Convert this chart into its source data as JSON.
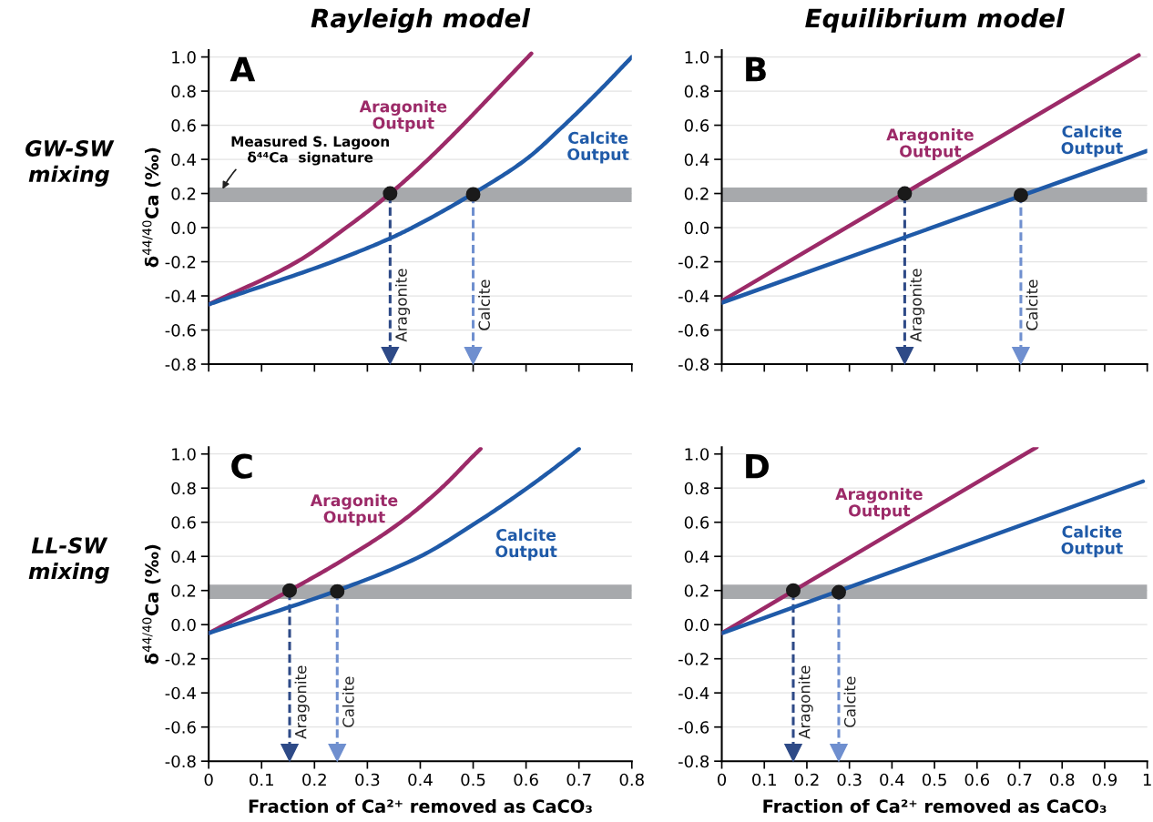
{
  "chart_data": [
    {
      "type": "line",
      "title": "Rayleigh model",
      "ylabel": "δ$^{44/40}$Ca (‰)",
      "annotations": [
        "A",
        "GW-SW mixing"
      ],
      "xlim": [
        0,
        0.8
      ],
      "xticks": [
        0,
        0.1,
        0.2,
        0.3,
        0.4,
        0.5,
        0.6,
        0.7,
        0.8
      ],
      "ylim": [
        -0.8,
        1.04
      ],
      "yticks": [
        {
          "value": -0.8,
          "label": "-0.8"
        },
        {
          "value": -0.6,
          "label": "-0.6"
        },
        {
          "value": -0.4,
          "label": "-0.4"
        },
        {
          "value": -0.2,
          "label": "-0.2"
        },
        {
          "value": 0,
          "label": "0.0"
        },
        {
          "value": 0.2,
          "label": "0.2"
        },
        {
          "value": 0.4,
          "label": "0.4"
        },
        {
          "value": 0.6,
          "label": "0.6"
        },
        {
          "value": 0.8,
          "label": "0.8"
        },
        {
          "value": 1.0,
          "label": "1.0"
        }
      ],
      "tick_labels": "y",
      "grid": "y",
      "marker": "none",
      "line_style": "solid",
      "series": [
        {
          "name": "Aragonite Output",
          "color": "#9c2a68",
          "x": [
            0,
            0.167,
            0.26,
            0.343,
            0.415,
            0.48,
            0.542,
            0.61
          ],
          "values": [
            -0.45,
            -0.2,
            0.0,
            0.2,
            0.4,
            0.6,
            0.8,
            1.02
          ]
        },
        {
          "name": "Calcite Output",
          "color": "#1f5aa8",
          "x": [
            0,
            0.047,
            0.234,
            0.345,
            0.385,
            0.5,
            0.6,
            0.672,
            0.738,
            0.8
          ],
          "values": [
            -0.45,
            -0.4,
            -0.2,
            -0.06,
            0.0,
            0.2,
            0.4,
            0.6,
            0.8,
            1.0
          ]
        },
        {
          "type": "scatter",
          "color": "#1a1a1a",
          "marker": "circle",
          "x": [
            0.343,
            0.5
          ],
          "values": [
            0.2,
            0.195
          ]
        }
      ],
      "bands": [
        {
          "axis": "y",
          "from": 0.15,
          "to": 0.235,
          "label": "Measured S. Lagoon\nδ⁴⁴Ca  signature",
          "color": "#a7a9ac"
        }
      ],
      "ref_lines": [
        {
          "axis": "x",
          "value": 0.343,
          "label": "Aragonite",
          "color": "#2e4a87",
          "line_style": "dashed"
        },
        {
          "axis": "x",
          "value": 0.5,
          "label": "Calcite",
          "color": "#6f8fcf",
          "line_style": "dashed"
        }
      ]
    },
    {
      "type": "line",
      "title": "Equilibrium model",
      "annotations": [
        "B"
      ],
      "xlim": [
        0,
        1
      ],
      "xticks": [
        0,
        0.1,
        0.2,
        0.3,
        0.4,
        0.5,
        0.6,
        0.7,
        0.8,
        0.9,
        1
      ],
      "ylim": [
        -0.8,
        1.04
      ],
      "yticks": [
        {
          "value": -0.8,
          "label": "-0.8"
        },
        {
          "value": -0.6,
          "label": "-0.6"
        },
        {
          "value": -0.4,
          "label": "-0.4"
        },
        {
          "value": -0.2,
          "label": "-0.2"
        },
        {
          "value": 0,
          "label": "0.0"
        },
        {
          "value": 0.2,
          "label": "0.2"
        },
        {
          "value": 0.4,
          "label": "0.4"
        },
        {
          "value": 0.6,
          "label": "0.6"
        },
        {
          "value": 0.8,
          "label": "0.8"
        },
        {
          "value": 1.0,
          "label": "1.0"
        }
      ],
      "tick_labels": "y",
      "grid": "y",
      "marker": "none",
      "line_style": "solid",
      "series": [
        {
          "name": "Aragonite Output",
          "color": "#9c2a68",
          "x": [
            0,
            0.98
          ],
          "values": [
            -0.43,
            1.01
          ]
        },
        {
          "name": "Calcite Output",
          "color": "#1f5aa8",
          "x": [
            0,
            1.0
          ],
          "values": [
            -0.44,
            0.45
          ]
        },
        {
          "type": "scatter",
          "color": "#1a1a1a",
          "marker": "circle",
          "x": [
            0.43,
            0.703
          ],
          "values": [
            0.2,
            0.19
          ]
        }
      ],
      "bands": [
        {
          "axis": "y",
          "from": 0.15,
          "to": 0.235,
          "color": "#a7a9ac"
        }
      ],
      "ref_lines": [
        {
          "axis": "x",
          "value": 0.43,
          "label": "Aragonite",
          "color": "#2e4a87",
          "line_style": "dashed"
        },
        {
          "axis": "x",
          "value": 0.703,
          "label": "Calcite",
          "color": "#6f8fcf",
          "line_style": "dashed"
        }
      ]
    },
    {
      "type": "line",
      "xlabel": "Fraction of Ca²⁺ removed as CaCO₃",
      "ylabel": "δ$^{44/40}$Ca (‰)",
      "annotations": [
        "C",
        "LL-SW mixing"
      ],
      "xlim": [
        0,
        0.8
      ],
      "xticks": [
        0,
        0.1,
        0.2,
        0.3,
        0.4,
        0.5,
        0.6,
        0.7,
        0.8
      ],
      "ylim": [
        -0.8,
        1.04
      ],
      "yticks": [
        {
          "value": -0.8,
          "label": "-0.8"
        },
        {
          "value": -0.6,
          "label": "-0.6"
        },
        {
          "value": -0.4,
          "label": "-0.4"
        },
        {
          "value": -0.2,
          "label": "-0.2"
        },
        {
          "value": 0,
          "label": "0.0"
        },
        {
          "value": 0.2,
          "label": "0.2"
        },
        {
          "value": 0.4,
          "label": "0.4"
        },
        {
          "value": 0.6,
          "label": "0.6"
        },
        {
          "value": 0.8,
          "label": "0.8"
        },
        {
          "value": 1.0,
          "label": "1.0"
        }
      ],
      "grid": "y",
      "marker": "none",
      "line_style": "solid",
      "series": [
        {
          "name": "Aragonite Output",
          "color": "#9c2a68",
          "x": [
            0,
            0.153,
            0.265,
            0.363,
            0.44,
            0.504,
            0.514
          ],
          "values": [
            -0.05,
            0.2,
            0.4,
            0.6,
            0.8,
            1.0,
            1.03
          ]
        },
        {
          "name": "Calcite Output",
          "color": "#1f5aa8",
          "x": [
            0,
            0.243,
            0.4,
            0.507,
            0.602,
            0.688,
            0.7
          ],
          "values": [
            -0.05,
            0.2,
            0.4,
            0.6,
            0.8,
            1.0,
            1.03
          ]
        },
        {
          "type": "scatter",
          "color": "#1a1a1a",
          "marker": "circle",
          "x": [
            0.153,
            0.243
          ],
          "values": [
            0.2,
            0.195
          ]
        }
      ],
      "bands": [
        {
          "axis": "y",
          "from": 0.15,
          "to": 0.235,
          "color": "#a7a9ac"
        }
      ],
      "ref_lines": [
        {
          "axis": "x",
          "value": 0.153,
          "label": "Aragonite",
          "color": "#2e4a87",
          "line_style": "dashed"
        },
        {
          "axis": "x",
          "value": 0.243,
          "label": "Calcite",
          "color": "#6f8fcf",
          "line_style": "dashed"
        }
      ]
    },
    {
      "type": "line",
      "xlabel": "Fraction of Ca²⁺ removed as CaCO₃",
      "annotations": [
        "D"
      ],
      "xlim": [
        0,
        1
      ],
      "xticks": [
        0,
        0.1,
        0.2,
        0.3,
        0.4,
        0.5,
        0.6,
        0.7,
        0.8,
        0.9,
        1
      ],
      "ylim": [
        -0.8,
        1.04
      ],
      "yticks": [
        {
          "value": -0.8,
          "label": "-0.8"
        },
        {
          "value": -0.6,
          "label": "-0.6"
        },
        {
          "value": -0.4,
          "label": "-0.4"
        },
        {
          "value": -0.2,
          "label": "-0.2"
        },
        {
          "value": 0,
          "label": "0.0"
        },
        {
          "value": 0.2,
          "label": "0.2"
        },
        {
          "value": 0.4,
          "label": "0.4"
        },
        {
          "value": 0.6,
          "label": "0.6"
        },
        {
          "value": 0.8,
          "label": "0.8"
        },
        {
          "value": 1.0,
          "label": "1.0"
        }
      ],
      "grid": "y",
      "marker": "none",
      "line_style": "solid",
      "series": [
        {
          "name": "Aragonite Output",
          "color": "#9c2a68",
          "x": [
            0,
            0.74
          ],
          "values": [
            -0.05,
            1.04
          ]
        },
        {
          "name": "Calcite Output",
          "color": "#1f5aa8",
          "x": [
            0,
            0.99
          ],
          "values": [
            -0.05,
            0.84
          ]
        },
        {
          "type": "scatter",
          "color": "#1a1a1a",
          "marker": "circle",
          "x": [
            0.168,
            0.275
          ],
          "values": [
            0.2,
            0.19
          ]
        }
      ],
      "bands": [
        {
          "axis": "y",
          "from": 0.15,
          "to": 0.235,
          "color": "#a7a9ac"
        }
      ],
      "ref_lines": [
        {
          "axis": "x",
          "value": 0.168,
          "label": "Aragonite",
          "color": "#2e4a87",
          "line_style": "dashed"
        },
        {
          "axis": "x",
          "value": 0.275,
          "label": "Calcite",
          "color": "#6f8fcf",
          "line_style": "dashed"
        }
      ]
    }
  ]
}
